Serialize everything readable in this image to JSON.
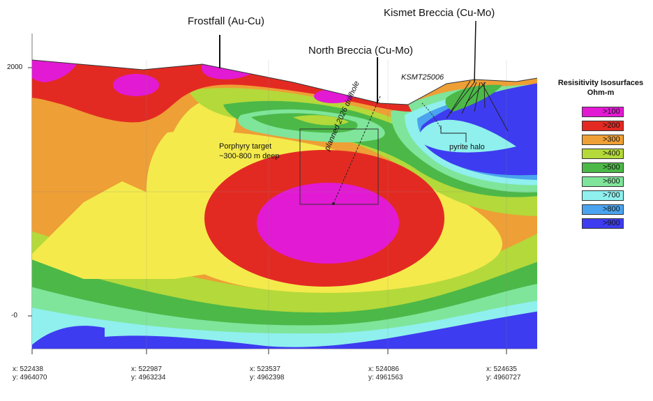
{
  "labels": {
    "frostfall": "Frostfall (Au-Cu)",
    "kismet": "Kismet Breccia (Cu-Mo)",
    "north_breccia": "North Breccia (Cu-Mo)",
    "ksmt": "KSMT25006",
    "porphyry_line1": "Porphyry target",
    "porphyry_line2": "~300-800 m deep",
    "drillhole": "planned 2026 drillhole",
    "pyrite_halo": "pyrite halo"
  },
  "y_axis": {
    "top": "2000",
    "bottom": "-0"
  },
  "x_coords": [
    {
      "x": "x: 522438",
      "y": "y: 4964070"
    },
    {
      "x": "x: 522987",
      "y": "y: 4963234"
    },
    {
      "x": "x: 523537",
      "y": "y: 4962398"
    },
    {
      "x": "x: 524086",
      "y": "y: 4961563"
    },
    {
      "x": "x: 524635",
      "y": "y: 4960727"
    }
  ],
  "legend": {
    "title": "Resisitivity Isosurfaces",
    "unit": "Ohm-m",
    "items": [
      {
        "label": ">100",
        "color": "#e21ad3"
      },
      {
        "label": ">200",
        "color": "#e32a22"
      },
      {
        "label": ">300",
        "color": "#ee9f35"
      },
      {
        "label": ">400",
        "color": "#b4d93a"
      },
      {
        "label": ">500",
        "color": "#4cb848"
      },
      {
        "label": ">600",
        "color": "#7fe59a"
      },
      {
        "label": ">700",
        "color": "#8ff0ee"
      },
      {
        "label": ">800",
        "color": "#4aa3ee"
      },
      {
        "label": ">900",
        "color": "#3e3cf0"
      }
    ]
  }
}
